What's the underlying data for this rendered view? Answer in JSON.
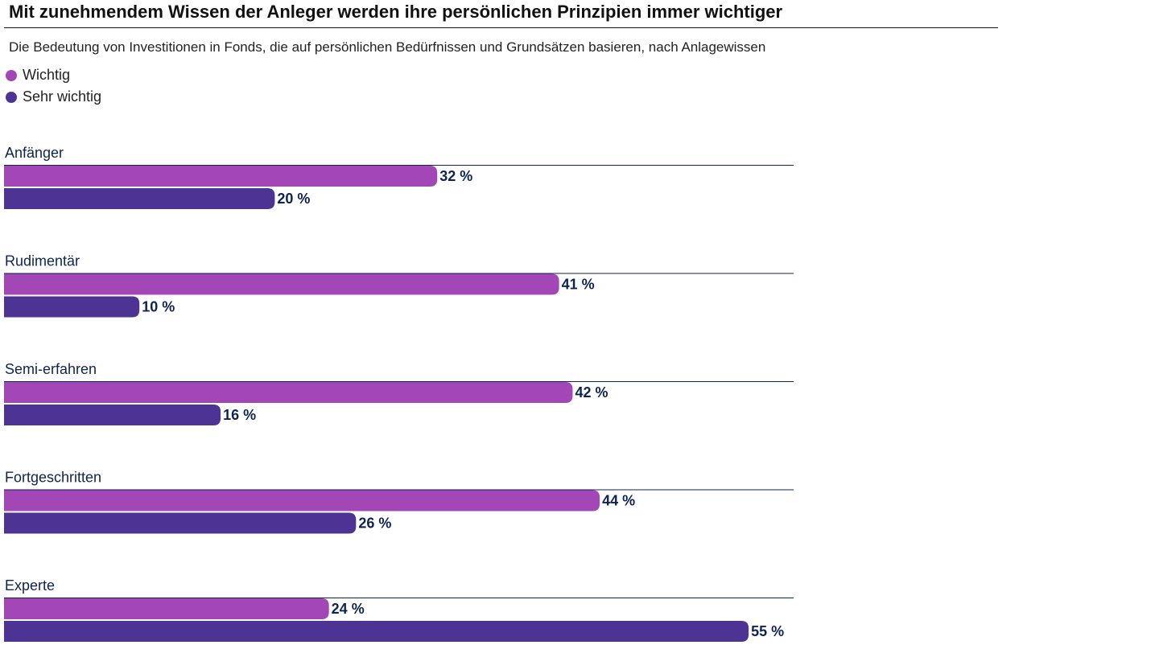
{
  "header": {
    "title": "Mit zunehmendem Wissen der Anleger werden ihre persönlichen Prinzipien immer wichtiger",
    "subtitle": "Die Bedeutung von Investitionen in Fonds, die auf persönlichen Bedürfnissen und Grundsätzen basieren, nach Anlagewissen"
  },
  "legend": [
    {
      "label": "Wichtig",
      "color": "#a346b6"
    },
    {
      "label": "Sehr wichtig",
      "color": "#4d3494"
    }
  ],
  "chart_data": {
    "type": "bar",
    "orientation": "horizontal",
    "title": "Mit zunehmendem Wissen der Anleger werden ihre persönlichen Prinzipien immer wichtiger",
    "subtitle": "Die Bedeutung von Investitionen in Fonds, die auf persönlichen Bedürfnissen und Grundsätzen basieren, nach Anlagewissen",
    "categories": [
      "Anfänger",
      "Rudimentär",
      "Semi-erfahren",
      "Fortgeschritten",
      "Experte"
    ],
    "series": [
      {
        "name": "Wichtig",
        "color": "#a346b6",
        "values": [
          32,
          41,
          42,
          44,
          24
        ],
        "labels": [
          "32 %",
          "41 %",
          "42 %",
          "44 %",
          "24 %"
        ]
      },
      {
        "name": "Sehr wichtig",
        "color": "#4d3494",
        "values": [
          20,
          10,
          16,
          26,
          55
        ],
        "labels": [
          "20 %",
          "10 %",
          "16 %",
          "26 %",
          "55 %"
        ]
      }
    ],
    "xlim": [
      0,
      58
    ],
    "unit": "%",
    "legend_position": "top-left",
    "grid": false
  }
}
